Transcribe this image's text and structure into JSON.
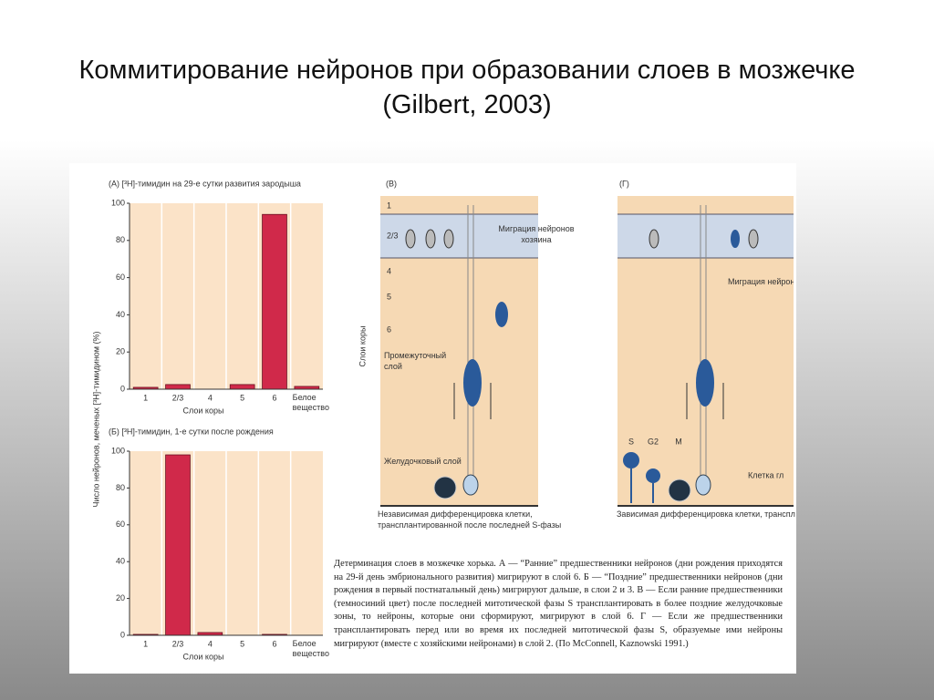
{
  "slide_title": "Коммитирование нейронов при образовании слоев в мозжечке (Gilbert, 2003)",
  "figure_ylabel": "Число нейронов, меченых [³H]-тимидином (%)",
  "chart_data": [
    {
      "type": "bar",
      "title": "(А) [³H]-тимидин на 29-е сутки развития  зародыша",
      "xlabel": "Слои коры",
      "categories": [
        "1",
        "2/3",
        "4",
        "5",
        "6",
        "Белое вещество"
      ],
      "values": [
        1,
        2.5,
        0,
        2.5,
        94,
        1.5
      ],
      "color": "#d0294a",
      "ylim": [
        0,
        100
      ],
      "yticks": [
        0,
        20,
        40,
        60,
        80,
        100
      ]
    },
    {
      "type": "bar",
      "title": "(Б) [³H]-тимидин, 1-е сутки после рождения",
      "xlabel": "Слои коры",
      "categories": [
        "1",
        "2/3",
        "4",
        "5",
        "6",
        "Белое вещество"
      ],
      "values": [
        0.5,
        98,
        1.5,
        0,
        0.5,
        0
      ],
      "color": "#d0294a",
      "ylim": [
        0,
        100
      ],
      "yticks": [
        0,
        20,
        40,
        60,
        80,
        100
      ]
    }
  ],
  "panel_v": {
    "label": "(В)",
    "layers": [
      "1",
      "2/3",
      "4",
      "5",
      "6",
      "Промежуточный слой",
      "Желудочковый слой"
    ],
    "axis_label": "Слои коры",
    "migration": "Миграция нейронов хозяина",
    "caption": "Независимая дифференцировка клетки, трансплантированной после последней S-фазы"
  },
  "panel_g": {
    "label": "(Г)",
    "migration": "Миграция нейронов хоз",
    "phases": [
      "S",
      "G2",
      "M"
    ],
    "cell": "Клетка гл",
    "caption": "Зависимая дифференцировка клетки, трансплантированной в фазе S"
  },
  "caption": "Детерминация слоев в мозжечке хорька. А — “Ранние” предшественники нейронов (дни рождения приходятся на 29-й день эмбрионального развития) мигрируют в слой 6. Б — “Поздние” предшественники нейронов (дни рождения в первый постнатальный день) мигрируют дальше, в слои 2 и 3. В — Если ранние предшественники (темносиний цвет) после последней митотической фазы S трансплантировать в более поздние желудочковые зоны, то нейроны, которые они сформируют, мигрируют в слой 6. Г — Если же предшественники трансплантировать перед или во время их последней митотической фазы S, образуемые ими нейроны мигрируют (вместе с хозяйскими нейронами) в слой 2. (По McConnell, Kaznowski 1991.)"
}
